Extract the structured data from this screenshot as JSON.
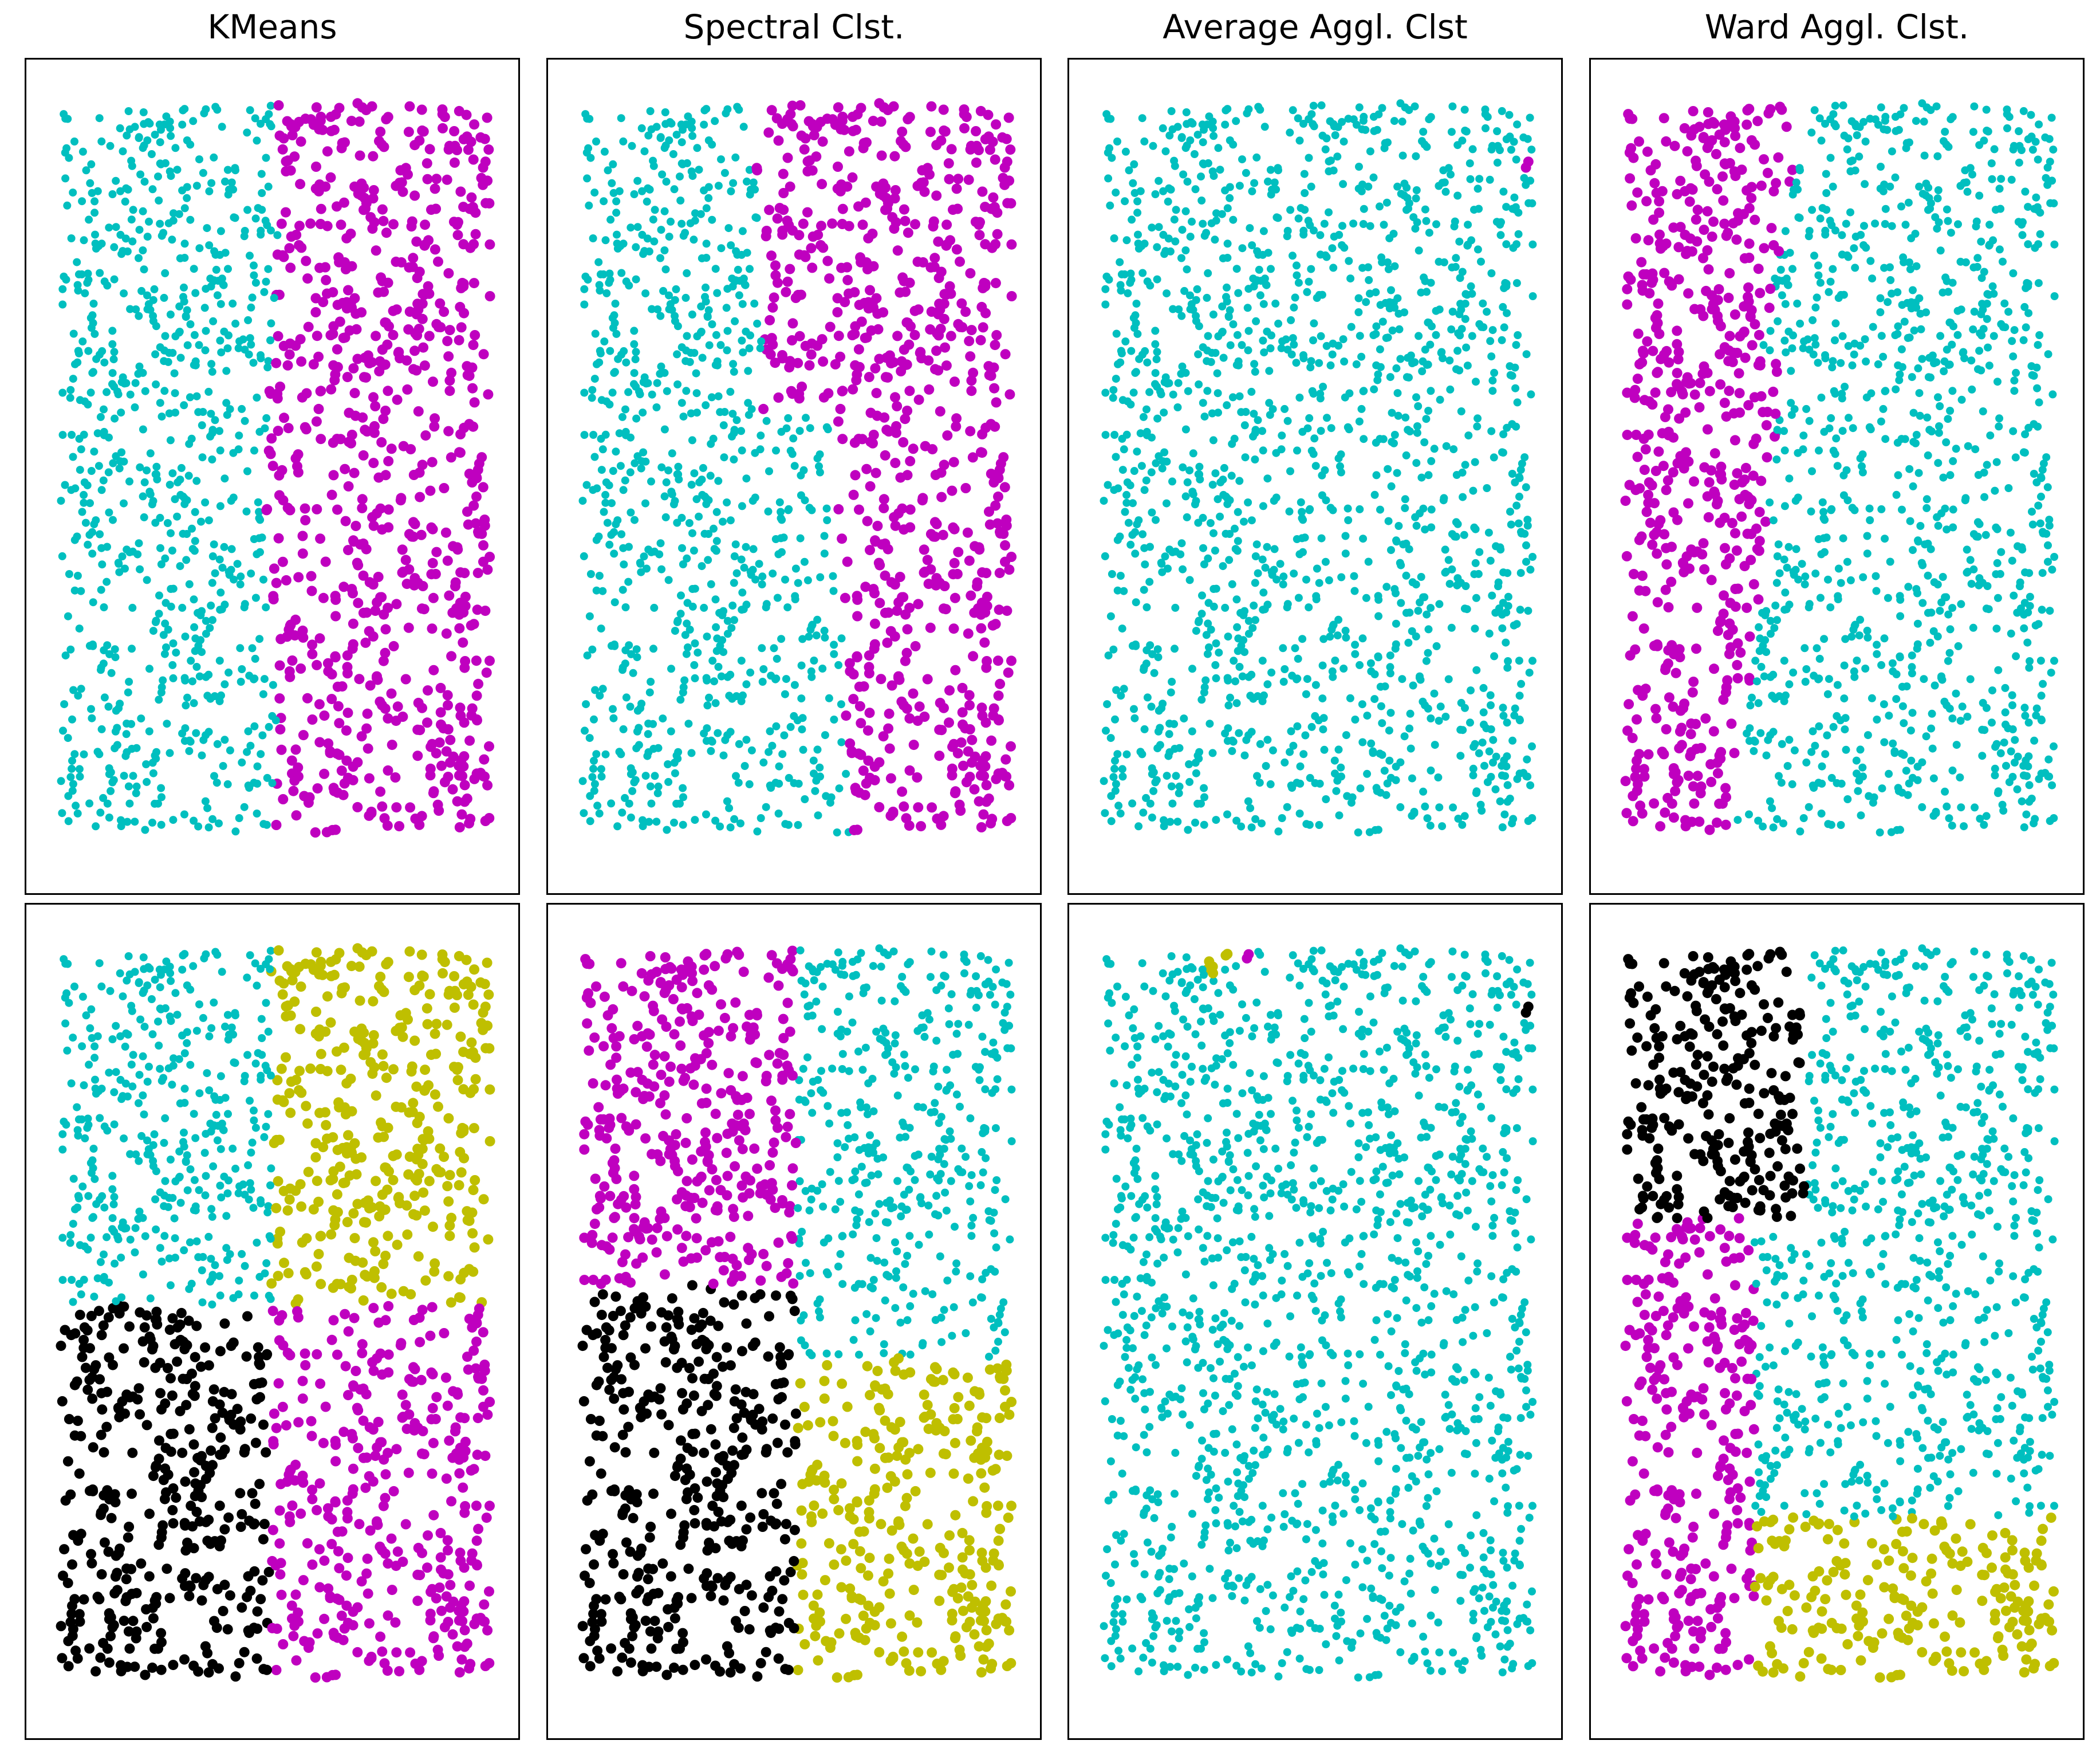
{
  "figure": {
    "column_titles": [
      "KMeans",
      "Spectral Clst.",
      "Average Aggl. Clst",
      "Ward Aggl. Clst."
    ]
  },
  "colors": {
    "cyan": "#00bfbf",
    "magenta": "#bf00bf",
    "yellow": "#bfbf00",
    "black": "#000000"
  },
  "chart_data": [
    {
      "type": "scatter",
      "title": "KMeans",
      "row": 1,
      "axes": "hidden",
      "grid": false,
      "xlim": [
        0,
        1
      ],
      "ylim": [
        0,
        1
      ],
      "n_points": 1500,
      "n_clusters": 2,
      "clusters": [
        {
          "color": "cyan",
          "region": "left half (x < 0.5)"
        },
        {
          "color": "magenta",
          "region": "right half (x >= 0.5)"
        }
      ]
    },
    {
      "type": "scatter",
      "title": "Spectral Clst.",
      "row": 1,
      "axes": "hidden",
      "grid": false,
      "xlim": [
        0,
        1
      ],
      "ylim": [
        0,
        1
      ],
      "n_points": 1500,
      "n_clusters": 2,
      "clusters": [
        {
          "color": "cyan",
          "region": "left part, boundary shifting right toward bottom"
        },
        {
          "color": "magenta",
          "region": "right part"
        }
      ]
    },
    {
      "type": "scatter",
      "title": "Average Aggl. Clst",
      "row": 1,
      "axes": "hidden",
      "grid": false,
      "xlim": [
        0,
        1
      ],
      "ylim": [
        0,
        1
      ],
      "n_points": 1500,
      "n_clusters": 2,
      "clusters": [
        {
          "color": "cyan",
          "region": "almost all points"
        },
        {
          "color": "magenta",
          "region": "single point at top-right corner"
        }
      ]
    },
    {
      "type": "scatter",
      "title": "Ward Aggl. Clst.",
      "row": 1,
      "axes": "hidden",
      "grid": false,
      "xlim": [
        0,
        1
      ],
      "ylim": [
        0,
        1
      ],
      "n_points": 1500,
      "n_clusters": 2,
      "clusters": [
        {
          "color": "magenta",
          "region": "left strip"
        },
        {
          "color": "cyan",
          "region": "remaining area"
        }
      ]
    },
    {
      "type": "scatter",
      "title": "KMeans",
      "row": 2,
      "axes": "hidden",
      "grid": false,
      "xlim": [
        0,
        1
      ],
      "ylim": [
        0,
        1
      ],
      "n_points": 1500,
      "n_clusters": 4,
      "clusters": [
        {
          "color": "cyan",
          "region": "top-left quadrant"
        },
        {
          "color": "yellow",
          "region": "top-right quadrant"
        },
        {
          "color": "black",
          "region": "bottom-left quadrant"
        },
        {
          "color": "magenta",
          "region": "bottom-right quadrant"
        }
      ]
    },
    {
      "type": "scatter",
      "title": "Spectral Clst.",
      "row": 2,
      "axes": "hidden",
      "grid": false,
      "xlim": [
        0,
        1
      ],
      "ylim": [
        0,
        1
      ],
      "n_points": 1500,
      "n_clusters": 4,
      "clusters": [
        {
          "color": "magenta",
          "region": "top-left"
        },
        {
          "color": "cyan",
          "region": "top-right / middle-right"
        },
        {
          "color": "black",
          "region": "bottom-left"
        },
        {
          "color": "yellow",
          "region": "bottom-right"
        }
      ]
    },
    {
      "type": "scatter",
      "title": "Average Aggl. Clst",
      "row": 2,
      "axes": "hidden",
      "grid": false,
      "xlim": [
        0,
        1
      ],
      "ylim": [
        0,
        1
      ],
      "n_points": 1500,
      "n_clusters": 4,
      "clusters": [
        {
          "color": "cyan",
          "region": "almost all points"
        },
        {
          "color": "yellow",
          "region": "two points near top-left"
        },
        {
          "color": "magenta",
          "region": "single point near top-left"
        },
        {
          "color": "black",
          "region": "single point at top-right"
        }
      ]
    },
    {
      "type": "scatter",
      "title": "Ward Aggl. Clst.",
      "row": 2,
      "axes": "hidden",
      "grid": false,
      "xlim": [
        0,
        1
      ],
      "ylim": [
        0,
        1
      ],
      "n_points": 1500,
      "n_clusters": 4,
      "clusters": [
        {
          "color": "black",
          "region": "top-left block"
        },
        {
          "color": "magenta",
          "region": "lower-left strip"
        },
        {
          "color": "cyan",
          "region": "upper-right / middle"
        },
        {
          "color": "yellow",
          "region": "bottom-right"
        }
      ]
    }
  ]
}
